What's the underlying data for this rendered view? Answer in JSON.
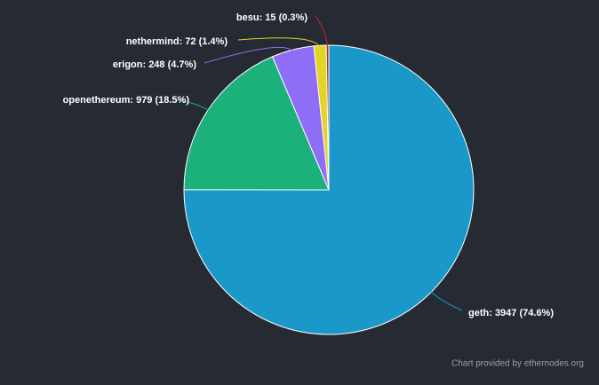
{
  "chart_data": {
    "type": "pie",
    "values": [
      3947,
      979,
      248,
      72,
      15
    ],
    "value_labels": [
      "geth: 3947 (74.6%)",
      "openethereum: 979 (18.5%)",
      "erigon: 248 (4.7%)",
      "nethermind: 72 (1.4%)",
      "besu: 15 (0.3%)"
    ],
    "colors": [
      "#1a98c9",
      "#1cb07a",
      "#8f6ef7",
      "#e3d527",
      "#b8322a"
    ],
    "credit": "Chart provided by ethernodes.org"
  }
}
